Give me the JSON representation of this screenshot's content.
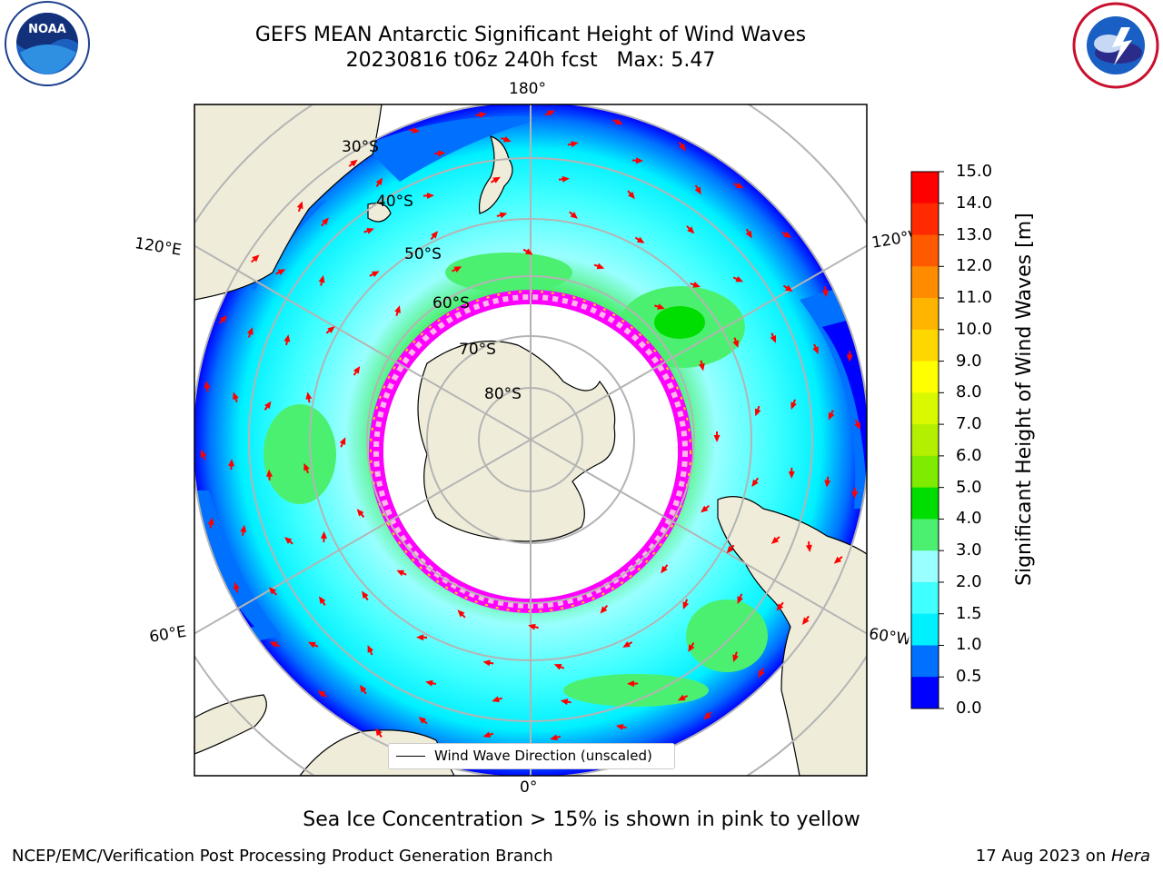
{
  "title": {
    "line1": "GEFS MEAN Antarctic Significant Height of Wind Waves",
    "line2": "20230816 t06z 240h fcst   Max: 5.47"
  },
  "logos": {
    "left": "NOAA",
    "right": "NATIONAL WEATHER SERVICE"
  },
  "map": {
    "longitude_labels": {
      "top": "180°",
      "bottom": "0°",
      "upper_left": "120°E",
      "upper_right": "120°W",
      "lower_left": "60°E",
      "lower_right": "60°W"
    },
    "latitude_labels": [
      "30°S",
      "40°S",
      "50°S",
      "60°S",
      "70°S",
      "80°S"
    ],
    "legend": "Wind Wave Direction (unscaled)",
    "colors": {
      "land": "#efedda",
      "ocean_low": "#00ffff",
      "arrow": "#ff0000",
      "ice": "#ff00ff"
    }
  },
  "colorbar": {
    "label": "Significant Height of Wind Waves [m]",
    "ticks": [
      "15.0",
      "14.0",
      "13.0",
      "12.0",
      "11.0",
      "10.0",
      "9.0",
      "8.0",
      "7.0",
      "6.0",
      "5.0",
      "4.0",
      "3.0",
      "2.0",
      "1.5",
      "1.0",
      "0.5",
      "0.0"
    ],
    "colors": [
      "#ff0000",
      "#ff2a00",
      "#ff5a00",
      "#ff8c00",
      "#ffb400",
      "#ffd700",
      "#ffff00",
      "#d9f900",
      "#b2ef00",
      "#7eeb00",
      "#00dd00",
      "#4cf070",
      "#99ffff",
      "#40ffff",
      "#00f0ff",
      "#0070ff",
      "#0000ff"
    ]
  },
  "notes": {
    "ice": "Sea Ice Concentration > 15% is shown in pink to yellow",
    "footer_left": "NCEP/EMC/Verification Post Processing Product Generation Branch",
    "footer_date": "17 Aug 2023 on ",
    "footer_machine": "Hera"
  }
}
